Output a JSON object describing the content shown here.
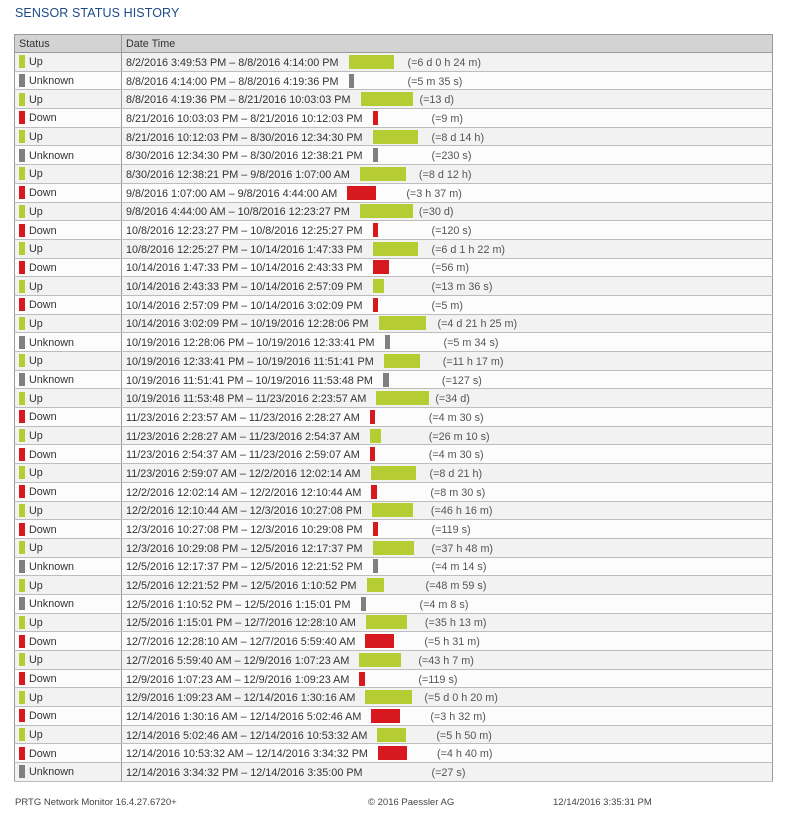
{
  "title": "SENSOR STATUS HISTORY",
  "columns": [
    "Status",
    "Date Time"
  ],
  "status_colors": {
    "Up": "#b5cc33",
    "Down": "#d7191f",
    "Unknown": "#808080"
  },
  "rows": [
    {
      "status": "Up",
      "range": "8/2/2016 3:49:53 PM – 8/8/2016 4:14:00 PM",
      "duration": "(=6 d 0 h 24 m)",
      "bar_fill": 0.79
    },
    {
      "status": "Unknown",
      "range": "8/8/2016 4:14:00 PM – 8/8/2016 4:19:36 PM",
      "duration": "(=5 m 35 s)",
      "bar_fill": 0.09
    },
    {
      "status": "Up",
      "range": "8/8/2016 4:19:36 PM – 8/21/2016 10:03:03 PM",
      "duration": "(=13 d)",
      "bar_fill": 0.91
    },
    {
      "status": "Down",
      "range": "8/21/2016 10:03:03 PM – 8/21/2016 10:12:03 PM",
      "duration": "(=9 m)",
      "bar_fill": 0.09
    },
    {
      "status": "Up",
      "range": "8/21/2016 10:12:03 PM – 8/30/2016 12:34:30 PM",
      "duration": "(=8 d 14 h)",
      "bar_fill": 0.79
    },
    {
      "status": "Unknown",
      "range": "8/30/2016 12:34:30 PM – 8/30/2016 12:38:21 PM",
      "duration": "(=230 s)",
      "bar_fill": 0.09
    },
    {
      "status": "Up",
      "range": "8/30/2016 12:38:21 PM – 9/8/2016 1:07:00 AM",
      "duration": "(=8 d 12 h)",
      "bar_fill": 0.79
    },
    {
      "status": "Down",
      "range": "9/8/2016 1:07:00 AM – 9/8/2016 4:44:00 AM",
      "duration": "(=3 h 37 m)",
      "bar_fill": 0.5
    },
    {
      "status": "Up",
      "range": "9/8/2016 4:44:00 AM – 10/8/2016 12:23:27 PM",
      "duration": "(=30 d)",
      "bar_fill": 0.91
    },
    {
      "status": "Down",
      "range": "10/8/2016 12:23:27 PM – 10/8/2016 12:25:27 PM",
      "duration": "(=120 s)",
      "bar_fill": 0.09
    },
    {
      "status": "Up",
      "range": "10/8/2016 12:25:27 PM – 10/14/2016 1:47:33 PM",
      "duration": "(=6 d 1 h 22 m)",
      "bar_fill": 0.79
    },
    {
      "status": "Down",
      "range": "10/14/2016 1:47:33 PM – 10/14/2016 2:43:33 PM",
      "duration": "(=56 m)",
      "bar_fill": 0.29
    },
    {
      "status": "Up",
      "range": "10/14/2016 2:43:33 PM – 10/14/2016 2:57:09 PM",
      "duration": "(=13 m 36 s)",
      "bar_fill": 0.2
    },
    {
      "status": "Down",
      "range": "10/14/2016 2:57:09 PM – 10/14/2016 3:02:09 PM",
      "duration": "(=5 m)",
      "bar_fill": 0.09
    },
    {
      "status": "Up",
      "range": "10/14/2016 3:02:09 PM – 10/19/2016 12:28:06 PM",
      "duration": "(=4 d 21 h 25 m)",
      "bar_fill": 0.81
    },
    {
      "status": "Unknown",
      "range": "10/19/2016 12:28:06 PM – 10/19/2016 12:33:41 PM",
      "duration": "(=5 m 34 s)",
      "bar_fill": 0.1
    },
    {
      "status": "Up",
      "range": "10/19/2016 12:33:41 PM – 10/19/2016 11:51:41 PM",
      "duration": "(=11 h 17 m)",
      "bar_fill": 0.62
    },
    {
      "status": "Unknown",
      "range": "10/19/2016 11:51:41 PM – 10/19/2016 11:53:48 PM",
      "duration": "(=127 s)",
      "bar_fill": 0.1
    },
    {
      "status": "Up",
      "range": "10/19/2016 11:53:48 PM – 11/23/2016 2:23:57 AM",
      "duration": "(=34 d)",
      "bar_fill": 0.91
    },
    {
      "status": "Down",
      "range": "11/23/2016 2:23:57 AM – 11/23/2016 2:28:27 AM",
      "duration": "(=4 m 30 s)",
      "bar_fill": 0.09
    },
    {
      "status": "Up",
      "range": "11/23/2016 2:28:27 AM – 11/23/2016 2:54:37 AM",
      "duration": "(=26 m 10 s)",
      "bar_fill": 0.2
    },
    {
      "status": "Down",
      "range": "11/23/2016 2:54:37 AM – 11/23/2016 2:59:07 AM",
      "duration": "(=4 m 30 s)",
      "bar_fill": 0.09
    },
    {
      "status": "Up",
      "range": "11/23/2016 2:59:07 AM – 12/2/2016 12:02:14 AM",
      "duration": "(=8 d 21 h)",
      "bar_fill": 0.79
    },
    {
      "status": "Down",
      "range": "12/2/2016 12:02:14 AM – 12/2/2016 12:10:44 AM",
      "duration": "(=8 m 30 s)",
      "bar_fill": 0.09
    },
    {
      "status": "Up",
      "range": "12/2/2016 12:10:44 AM – 12/3/2016 10:27:08 PM",
      "duration": "(=46 h 16 m)",
      "bar_fill": 0.71
    },
    {
      "status": "Down",
      "range": "12/3/2016 10:27:08 PM – 12/3/2016 10:29:08 PM",
      "duration": "(=119 s)",
      "bar_fill": 0.09
    },
    {
      "status": "Up",
      "range": "12/3/2016 10:29:08 PM – 12/5/2016 12:17:37 PM",
      "duration": "(=37 h 48 m)",
      "bar_fill": 0.71
    },
    {
      "status": "Unknown",
      "range": "12/5/2016 12:17:37 PM – 12/5/2016 12:21:52 PM",
      "duration": "(=4 m 14 s)",
      "bar_fill": 0.09
    },
    {
      "status": "Up",
      "range": "12/5/2016 12:21:52 PM – 12/5/2016 1:10:52 PM",
      "duration": "(=48 m 59 s)",
      "bar_fill": 0.31
    },
    {
      "status": "Unknown",
      "range": "12/5/2016 1:10:52 PM – 12/5/2016 1:15:01 PM",
      "duration": "(=4 m 8 s)",
      "bar_fill": 0.09
    },
    {
      "status": "Up",
      "range": "12/5/2016 1:15:01 PM – 12/7/2016 12:28:10 AM",
      "duration": "(=35 h 13 m)",
      "bar_fill": 0.71
    },
    {
      "status": "Down",
      "range": "12/7/2016 12:28:10 AM – 12/7/2016 5:59:40 AM",
      "duration": "(=5 h 31 m)",
      "bar_fill": 0.5
    },
    {
      "status": "Up",
      "range": "12/7/2016 5:59:40 AM – 12/9/2016 1:07:23 AM",
      "duration": "(=43 h 7 m)",
      "bar_fill": 0.71
    },
    {
      "status": "Down",
      "range": "12/9/2016 1:07:23 AM – 12/9/2016 1:09:23 AM",
      "duration": "(=119 s)",
      "bar_fill": 0.09
    },
    {
      "status": "Up",
      "range": "12/9/2016 1:09:23 AM – 12/14/2016 1:30:16 AM",
      "duration": "(=5 d 0 h 20 m)",
      "bar_fill": 0.81
    },
    {
      "status": "Down",
      "range": "12/14/2016 1:30:16 AM – 12/14/2016 5:02:46 AM",
      "duration": "(=3 h 32 m)",
      "bar_fill": 0.5
    },
    {
      "status": "Up",
      "range": "12/14/2016 5:02:46 AM – 12/14/2016 10:53:32 AM",
      "duration": "(=5 h 50 m)",
      "bar_fill": 0.5
    },
    {
      "status": "Down",
      "range": "12/14/2016 10:53:32 AM – 12/14/2016 3:34:32 PM",
      "duration": "(=4 h 40 m)",
      "bar_fill": 0.5
    },
    {
      "status": "Unknown",
      "range": "12/14/2016 3:34:32 PM – 12/14/2016 3:35:00 PM",
      "duration": "(=27 s)",
      "bar_fill": 0
    }
  ],
  "footer": {
    "product": "PRTG Network Monitor 16.4.27.6720+",
    "copyright": "© 2016 Paessler AG",
    "timestamp": "12/14/2016 3:35:31 PM"
  }
}
